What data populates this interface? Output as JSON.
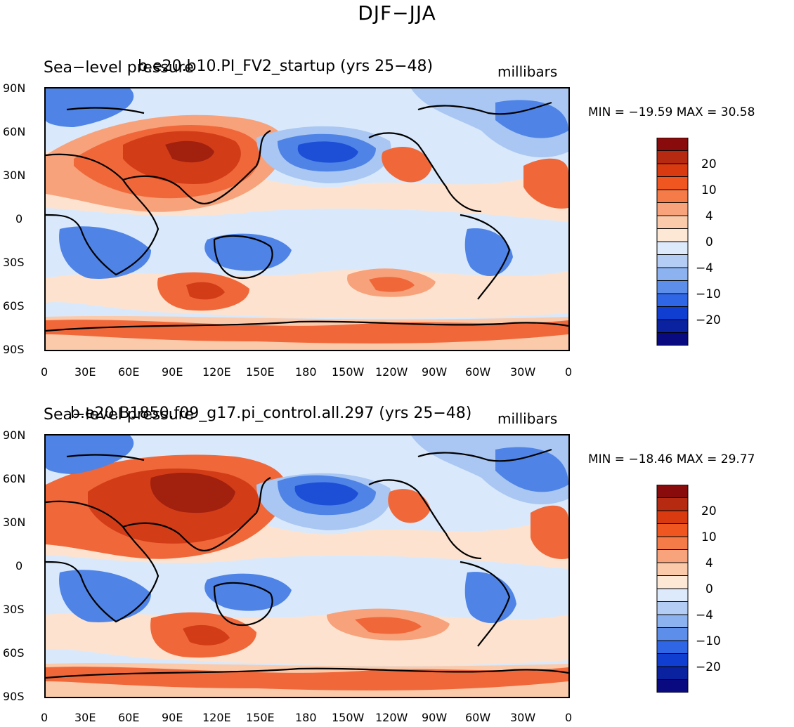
{
  "figure_title": "DJF−JJA",
  "panels": [
    {
      "variable": "Sea−level pressure",
      "case": "b.e20.b10.PI_FV2_startup (yrs 25−48)",
      "units": "millibars",
      "minmax": "MIN = −19.59  MAX =   30.58"
    },
    {
      "variable": "Sea−level pressure",
      "case": "b.e20.B1850.f09_g17.pi_control.all.297 (yrs 25−48)",
      "units": "millibars",
      "minmax": "MIN = −18.46  MAX =   29.77"
    }
  ],
  "lat_ticks": [
    "90N",
    "60N",
    "30N",
    "0",
    "30S",
    "60S",
    "90S"
  ],
  "lon_ticks": [
    "0",
    "30E",
    "60E",
    "90E",
    "120E",
    "150E",
    "180",
    "150W",
    "120W",
    "90W",
    "60W",
    "30W",
    "0"
  ],
  "colorbar": {
    "labels": [
      "20",
      "10",
      "4",
      "0",
      "−4",
      "−10",
      "−20"
    ],
    "colors": [
      "#8a0b0b",
      "#b52a10",
      "#d93a10",
      "#f0561f",
      "#f57c48",
      "#f8a37c",
      "#fbcaab",
      "#fde8d6",
      "#dceafc",
      "#b3cdf4",
      "#8cb2ef",
      "#5d8ee9",
      "#2f66e6",
      "#0f3ed0",
      "#0a22a0",
      "#0a0a80"
    ]
  },
  "map_colors": {
    "deep_red": "#a2200e",
    "red": "#d23d18",
    "orange": "#f0683a",
    "light_orange": "#f7a27b",
    "pale": "#fde3cf",
    "pale_blue": "#d9e9fb",
    "light_blue": "#a9c7f2",
    "blue": "#4f84e6",
    "dark_blue": "#1d4fd6"
  }
}
